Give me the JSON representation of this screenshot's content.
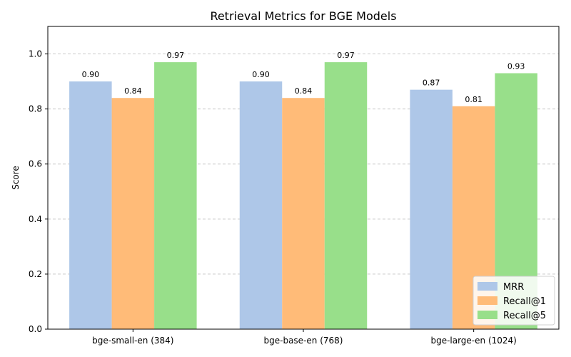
{
  "chart_data": {
    "type": "bar",
    "title": "Retrieval Metrics for BGE Models",
    "xlabel": "",
    "ylabel": "Score",
    "ylim": [
      0,
      1.1
    ],
    "yticks": [
      "0.0",
      "0.2",
      "0.4",
      "0.6",
      "0.8",
      "1.0"
    ],
    "grid": "y, dashed",
    "legend_position": "bottom-right",
    "categories": [
      "bge-small-en (384)",
      "bge-base-en (768)",
      "bge-large-en (1024)"
    ],
    "series": [
      {
        "name": "MRR",
        "color": "#aec7e8",
        "values": [
          0.9,
          0.9,
          0.87
        ],
        "labels": [
          "0.90",
          "0.90",
          "0.87"
        ]
      },
      {
        "name": "Recall@1",
        "color": "#ffbb78",
        "values": [
          0.84,
          0.84,
          0.81
        ],
        "labels": [
          "0.84",
          "0.84",
          "0.81"
        ]
      },
      {
        "name": "Recall@5",
        "color": "#98df8a",
        "values": [
          0.97,
          0.97,
          0.93
        ],
        "labels": [
          "0.97",
          "0.97",
          "0.93"
        ]
      }
    ]
  }
}
